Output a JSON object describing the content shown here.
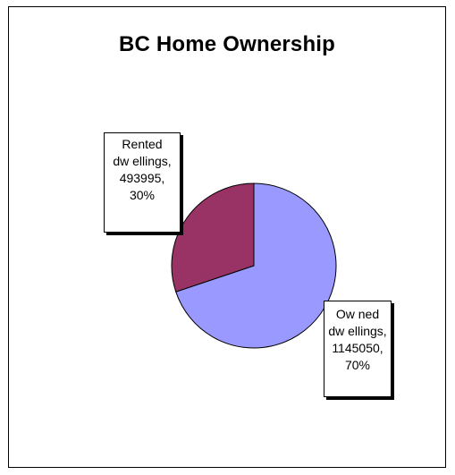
{
  "chart_data": {
    "type": "pie",
    "title": "BC Home Ownership",
    "slices": [
      {
        "label_lines": [
          "Ow ned",
          "dw ellings,",
          "1145050,",
          "70%"
        ],
        "category": "Owned dwellings",
        "value": 1145050,
        "percent": 70,
        "color": "#9999FF"
      },
      {
        "label_lines": [
          "Rented",
          "dw ellings,",
          "493995,",
          "30%"
        ],
        "category": "Rented dwellings",
        "value": 493995,
        "percent": 30,
        "color": "#993366"
      }
    ],
    "legend": "none"
  }
}
